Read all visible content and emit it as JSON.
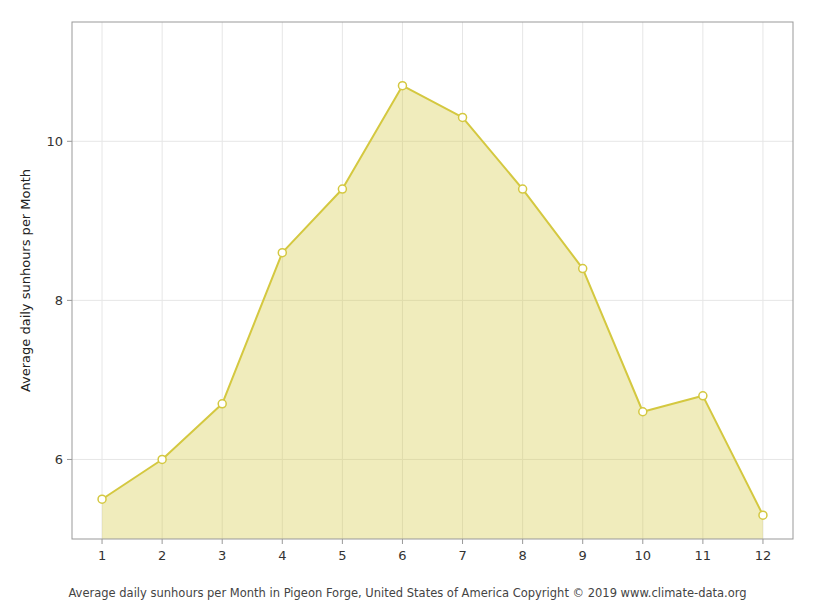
{
  "chart_data": {
    "type": "area",
    "ylabel": "Average daily sunhours per Month",
    "footer": "Average daily sunhours per Month in Pigeon Forge, United States of America Copyright © 2019 www.climate-data.org",
    "x": [
      1,
      2,
      3,
      4,
      5,
      6,
      7,
      8,
      9,
      10,
      11,
      12
    ],
    "values": [
      5.5,
      6.0,
      6.7,
      8.6,
      9.4,
      10.7,
      10.3,
      9.4,
      8.4,
      6.6,
      6.8,
      5.3
    ],
    "color": "#D4C840",
    "marker": "circle",
    "xlim": [
      0.5,
      12.5
    ],
    "ylim": [
      5.0,
      11.5
    ],
    "xticks": [
      1,
      2,
      3,
      4,
      5,
      6,
      7,
      8,
      9,
      10,
      11,
      12
    ],
    "yticks": [
      6,
      8,
      10
    ],
    "grid": true
  }
}
